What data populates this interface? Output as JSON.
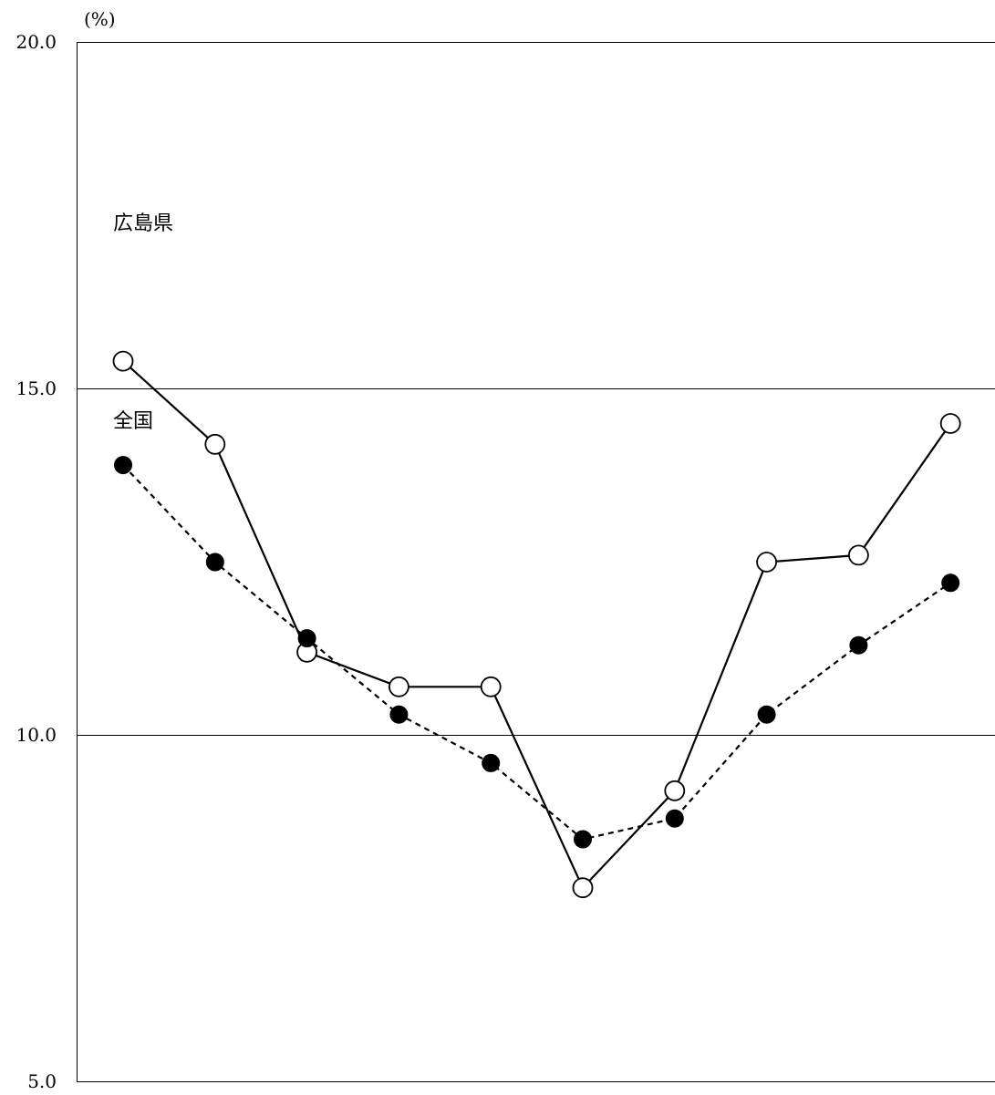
{
  "chart_data": {
    "type": "line",
    "unit_label": "(%)",
    "y_ticks": [
      "20.0",
      "15.0",
      "10.0",
      "5.0"
    ],
    "ylim": [
      5.0,
      20.0
    ],
    "grid": "horizontal",
    "x": [
      1,
      2,
      3,
      4,
      5,
      6,
      7,
      8,
      9,
      10
    ],
    "series": [
      {
        "name": "広島県",
        "marker": "open-circle",
        "line": "solid",
        "color": "#000000",
        "values": [
          15.4,
          14.2,
          11.2,
          10.7,
          10.7,
          7.8,
          9.2,
          12.5,
          12.6,
          14.5
        ]
      },
      {
        "name": "全国",
        "marker": "filled-circle",
        "line": "dashed",
        "color": "#000000",
        "values": [
          13.9,
          12.5,
          11.4,
          10.3,
          9.6,
          8.5,
          8.8,
          10.3,
          11.3,
          12.2
        ]
      }
    ]
  }
}
